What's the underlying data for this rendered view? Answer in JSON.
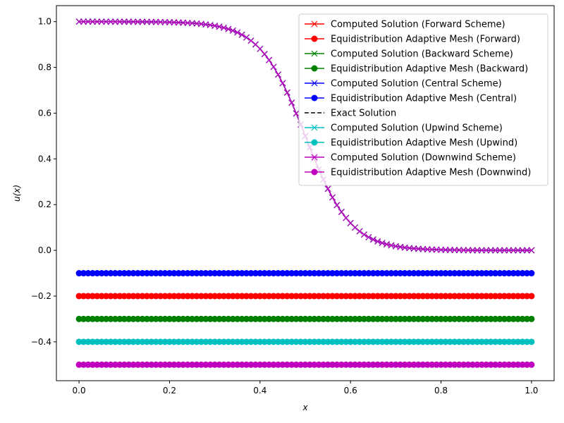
{
  "chart_data": {
    "type": "line",
    "xlabel": "x",
    "ylabel": "u(x)",
    "xlim": [
      -0.05,
      1.05
    ],
    "ylim": [
      -0.57,
      1.07
    ],
    "xticks": [
      "0.0",
      "0.2",
      "0.4",
      "0.6",
      "0.8",
      "1.0"
    ],
    "yticks": [
      "−0.4",
      "−0.2",
      "0.0",
      "0.2",
      "0.4",
      "0.6",
      "0.8",
      "1.0"
    ],
    "grid": false,
    "legend_position": "top-right",
    "solution_profile": {
      "x_range": [
        0,
        1
      ],
      "points": 101,
      "shape": "sigmoid",
      "center": 0.5,
      "steepness": 20,
      "value_left": 1.0,
      "value_right": 0.0
    },
    "series": [
      {
        "name": "Computed Solution (Forward Scheme)",
        "kind": "profile",
        "color": "#ff0000",
        "marker": "x",
        "dashed": false
      },
      {
        "name": "Equidistribution Adaptive Mesh (Forward)",
        "kind": "constant",
        "y": -0.2,
        "color": "#ff0000",
        "marker": "o",
        "dashed": false
      },
      {
        "name": "Computed Solution (Backward Scheme)",
        "kind": "profile",
        "color": "#008000",
        "marker": "x",
        "dashed": false
      },
      {
        "name": "Equidistribution Adaptive Mesh (Backward)",
        "kind": "constant",
        "y": -0.3,
        "color": "#008000",
        "marker": "o",
        "dashed": false
      },
      {
        "name": "Computed Solution (Central Scheme)",
        "kind": "profile",
        "color": "#0000ff",
        "marker": "x",
        "dashed": false
      },
      {
        "name": "Equidistribution Adaptive Mesh (Central)",
        "kind": "constant",
        "y": -0.1,
        "color": "#0000ff",
        "marker": "o",
        "dashed": false
      },
      {
        "name": "Exact Solution",
        "kind": "profile",
        "color": "#000000",
        "marker": "none",
        "dashed": true
      },
      {
        "name": "Computed Solution (Upwind Scheme)",
        "kind": "profile",
        "color": "#00bfbf",
        "marker": "x",
        "dashed": false
      },
      {
        "name": "Equidistribution Adaptive Mesh (Upwind)",
        "kind": "constant",
        "y": -0.4,
        "color": "#00bfbf",
        "marker": "o",
        "dashed": false
      },
      {
        "name": "Computed Solution (Downwind Scheme)",
        "kind": "profile",
        "color": "#bf00bf",
        "marker": "x",
        "dashed": false
      },
      {
        "name": "Equidistribution Adaptive Mesh (Downwind)",
        "kind": "constant",
        "y": -0.5,
        "color": "#bf00bf",
        "marker": "o",
        "dashed": false
      }
    ]
  }
}
